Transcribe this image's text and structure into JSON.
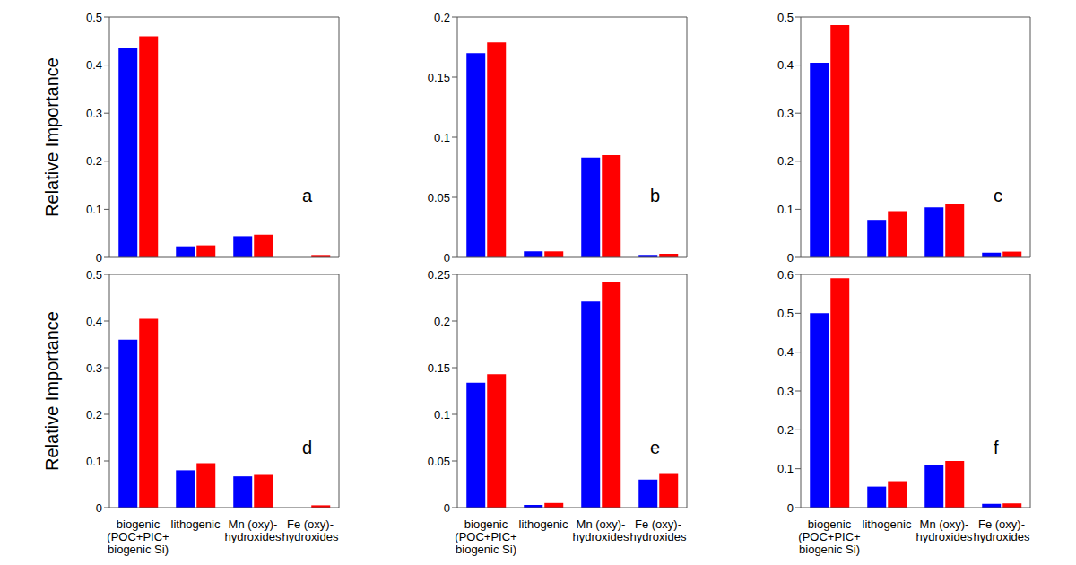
{
  "chart_data": [
    {
      "type": "bar",
      "annotation": "a",
      "ylabel": "Relative Importance",
      "tick_labels": "y",
      "categories": [
        "biogenic\n(POC+PIC+\nbiogenic Si)",
        "lithogenic",
        "Mn (oxy)-\nhydroxides",
        "Fe (oxy)-\nhydroxides"
      ],
      "series": [
        {
          "color": "#0000ff",
          "values": [
            0.435,
            0.023,
            0.044,
            0.0
          ]
        },
        {
          "color": "#ff0000",
          "values": [
            0.46,
            0.025,
            0.047,
            0.005
          ]
        }
      ],
      "ylim": [
        0,
        0.5
      ],
      "yticks": [
        0,
        0.1,
        0.2,
        0.3,
        0.4,
        0.5
      ]
    },
    {
      "type": "bar",
      "annotation": "b",
      "tick_labels": "y",
      "categories": [
        "biogenic\n(POC+PIC+\nbiogenic Si)",
        "lithogenic",
        "Mn (oxy)-\nhydroxides",
        "Fe (oxy)-\nhydroxides"
      ],
      "series": [
        {
          "color": "#0000ff",
          "values": [
            0.17,
            0.005,
            0.083,
            0.002
          ]
        },
        {
          "color": "#ff0000",
          "values": [
            0.179,
            0.005,
            0.085,
            0.003
          ]
        }
      ],
      "ylim": [
        0,
        0.2
      ],
      "yticks": [
        0,
        0.05,
        0.1,
        0.15,
        0.2
      ]
    },
    {
      "type": "bar",
      "annotation": "c",
      "tick_labels": "y",
      "categories": [
        "biogenic\n(POC+PIC+\nbiogenic Si)",
        "lithogenic",
        "Mn (oxy)-\nhydroxides",
        "Fe (oxy)-\nhydroxides"
      ],
      "series": [
        {
          "color": "#0000ff",
          "values": [
            0.405,
            0.078,
            0.104,
            0.01
          ]
        },
        {
          "color": "#ff0000",
          "values": [
            0.483,
            0.096,
            0.11,
            0.012
          ]
        }
      ],
      "ylim": [
        0,
        0.5
      ],
      "yticks": [
        0,
        0.1,
        0.2,
        0.3,
        0.4,
        0.5
      ]
    },
    {
      "type": "bar",
      "annotation": "d",
      "ylabel": "Relative Importance",
      "categories": [
        "biogenic\n(POC+PIC+\nbiogenic Si)",
        "lithogenic",
        "Mn (oxy)-\nhydroxides",
        "Fe (oxy)-\nhydroxides"
      ],
      "series": [
        {
          "color": "#0000ff",
          "values": [
            0.36,
            0.08,
            0.067,
            0.0
          ]
        },
        {
          "color": "#ff0000",
          "values": [
            0.405,
            0.095,
            0.07,
            0.005
          ]
        }
      ],
      "ylim": [
        0,
        0.5
      ],
      "yticks": [
        0,
        0.1,
        0.2,
        0.3,
        0.4,
        0.5
      ]
    },
    {
      "type": "bar",
      "annotation": "e",
      "categories": [
        "biogenic\n(POC+PIC+\nbiogenic Si)",
        "lithogenic",
        "Mn (oxy)-\nhydroxides",
        "Fe (oxy)-\nhydroxides"
      ],
      "series": [
        {
          "color": "#0000ff",
          "values": [
            0.134,
            0.003,
            0.221,
            0.03
          ]
        },
        {
          "color": "#ff0000",
          "values": [
            0.143,
            0.005,
            0.242,
            0.037
          ]
        }
      ],
      "ylim": [
        0,
        0.25
      ],
      "yticks": [
        0,
        0.05,
        0.1,
        0.15,
        0.2,
        0.25
      ]
    },
    {
      "type": "bar",
      "annotation": "f",
      "categories": [
        "biogenic\n(POC+PIC+\nbiogenic Si)",
        "lithogenic",
        "Mn (oxy)-\nhydroxides",
        "Fe (oxy)-\nhydroxides"
      ],
      "series": [
        {
          "color": "#0000ff",
          "values": [
            0.5,
            0.054,
            0.111,
            0.01
          ]
        },
        {
          "color": "#ff0000",
          "values": [
            0.59,
            0.068,
            0.12,
            0.011
          ]
        }
      ],
      "ylim": [
        0,
        0.6
      ],
      "yticks": [
        0,
        0.1,
        0.2,
        0.3,
        0.4,
        0.5,
        0.6
      ]
    }
  ]
}
